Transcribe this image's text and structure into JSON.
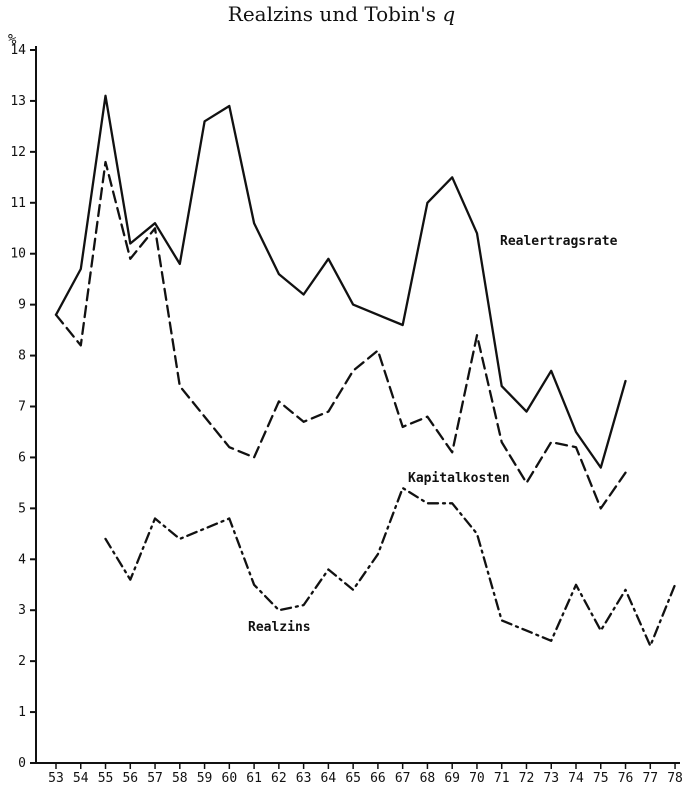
{
  "chart_data": {
    "type": "line",
    "title": "Realzins und Tobin's",
    "title_symbol": "q",
    "ylabel": "%",
    "ylim": [
      0,
      14
    ],
    "yticks": [
      0,
      1,
      2,
      3,
      4,
      5,
      6,
      7,
      8,
      9,
      10,
      11,
      12,
      13,
      14
    ],
    "xlim": [
      1953,
      1978
    ],
    "xtick_labels": [
      "53",
      "54",
      "55",
      "56",
      "57",
      "58",
      "59",
      "60",
      "61",
      "62",
      "63",
      "64",
      "65",
      "66",
      "67",
      "68",
      "69",
      "70",
      "71",
      "72",
      "73",
      "74",
      "75",
      "76",
      "77",
      "78"
    ],
    "grid": false,
    "series": [
      {
        "name": "Realertragsrate",
        "style": "solid",
        "points": [
          [
            1953,
            8.8
          ],
          [
            1954,
            9.7
          ],
          [
            1955,
            13.1
          ],
          [
            1956,
            10.2
          ],
          [
            1957,
            10.6
          ],
          [
            1958,
            9.8
          ],
          [
            1959,
            12.6
          ],
          [
            1960,
            12.9
          ],
          [
            1961,
            10.6
          ],
          [
            1962,
            9.6
          ],
          [
            1963,
            9.2
          ],
          [
            1964,
            9.9
          ],
          [
            1965,
            9.0
          ],
          [
            1967,
            8.6
          ],
          [
            1968,
            11.0
          ],
          [
            1969,
            11.5
          ],
          [
            1970,
            10.4
          ],
          [
            1971,
            7.4
          ],
          [
            1972,
            6.9
          ],
          [
            1973,
            7.7
          ],
          [
            1974,
            6.5
          ],
          [
            1975,
            5.8
          ],
          [
            1976,
            7.5
          ]
        ]
      },
      {
        "name": "Kapitalkosten",
        "style": "dashed",
        "points": [
          [
            1953,
            8.8
          ],
          [
            1954,
            8.2
          ],
          [
            1955,
            11.8
          ],
          [
            1956,
            9.9
          ],
          [
            1957,
            10.5
          ],
          [
            1958,
            7.4
          ],
          [
            1960,
            6.2
          ],
          [
            1961,
            6.0
          ],
          [
            1962,
            7.1
          ],
          [
            1963,
            6.7
          ],
          [
            1964,
            6.9
          ],
          [
            1965,
            7.7
          ],
          [
            1966,
            8.1
          ],
          [
            1967,
            6.6
          ],
          [
            1968,
            6.8
          ],
          [
            1969,
            6.1
          ],
          [
            1970,
            8.4
          ],
          [
            1971,
            6.3
          ],
          [
            1972,
            5.5
          ],
          [
            1973,
            6.3
          ],
          [
            1974,
            6.2
          ],
          [
            1975,
            5.0
          ],
          [
            1976,
            5.7
          ]
        ]
      },
      {
        "name": "Realzins",
        "style": "dashdot",
        "points": [
          [
            1955,
            4.4
          ],
          [
            1956,
            3.6
          ],
          [
            1957,
            4.8
          ],
          [
            1958,
            4.4
          ],
          [
            1960,
            4.8
          ],
          [
            1961,
            3.5
          ],
          [
            1962,
            3.0
          ],
          [
            1963,
            3.1
          ],
          [
            1964,
            3.8
          ],
          [
            1965,
            3.4
          ],
          [
            1966,
            4.1
          ],
          [
            1967,
            5.4
          ],
          [
            1968,
            5.1
          ],
          [
            1969,
            5.1
          ],
          [
            1970,
            4.5
          ],
          [
            1971,
            2.8
          ],
          [
            1972,
            2.6
          ],
          [
            1973,
            2.4
          ],
          [
            1974,
            3.5
          ],
          [
            1975,
            2.6
          ],
          [
            1976,
            3.4
          ],
          [
            1977,
            2.3
          ],
          [
            1978,
            3.5
          ]
        ]
      }
    ]
  }
}
